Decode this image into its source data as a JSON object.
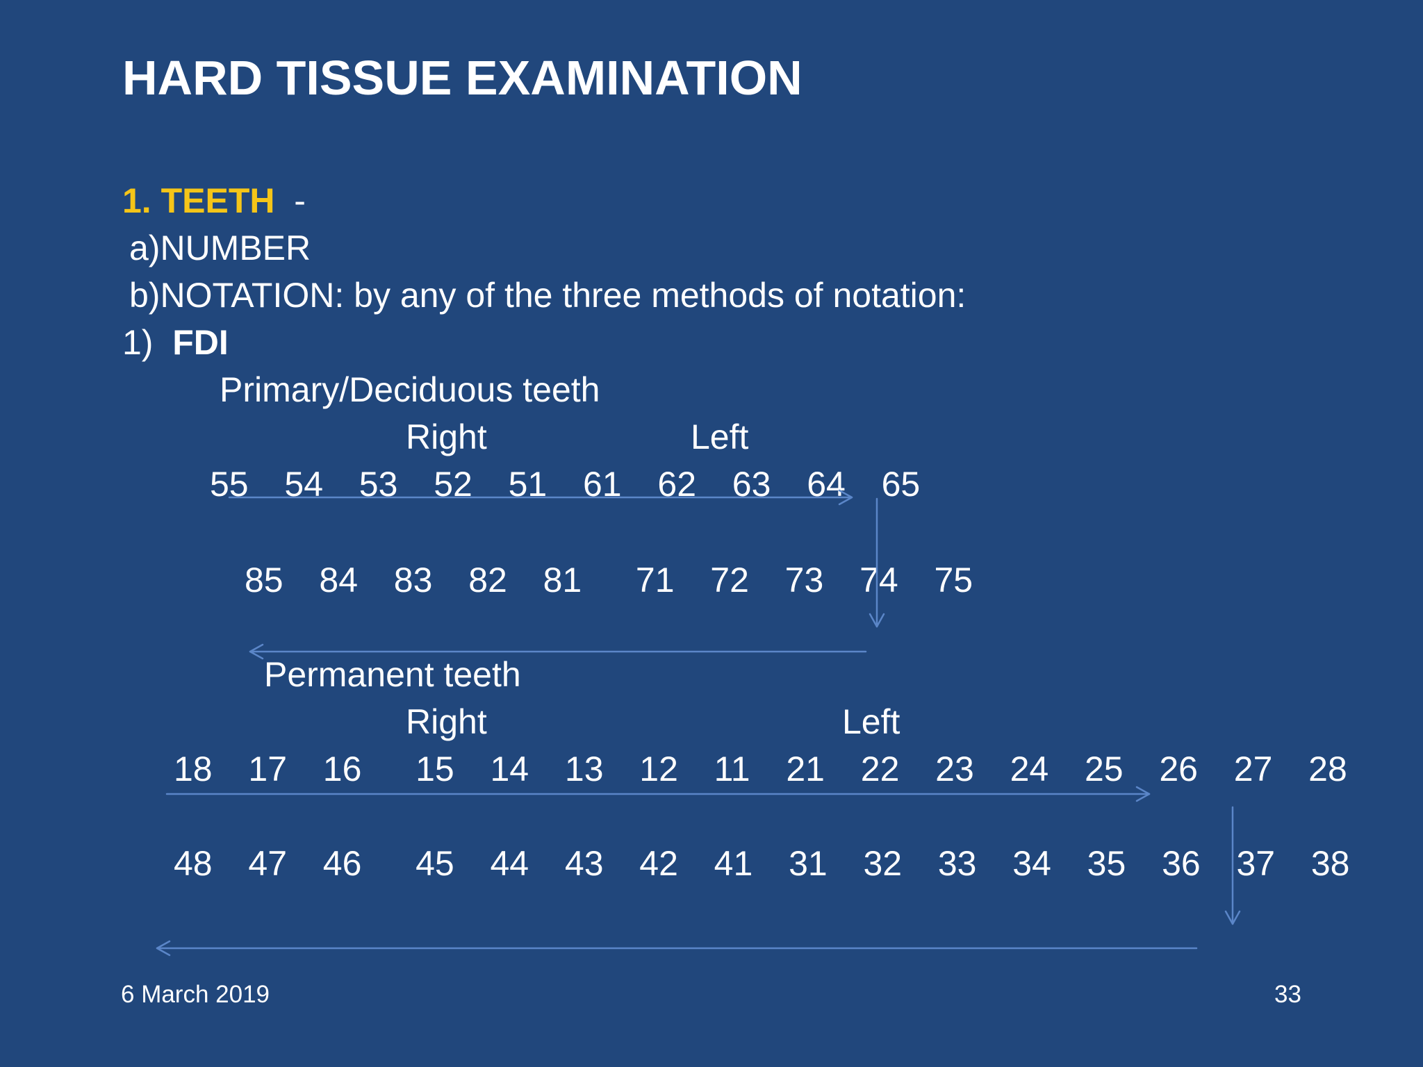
{
  "title": "HARD TISSUE EXAMINATION",
  "section": {
    "number_label": "1. TEETH",
    "dash": "-",
    "item_a": "a)NUMBER",
    "item_b": "b)NOTATION: by any of the three methods of notation:",
    "method_number": "1)",
    "method_name": "FDI"
  },
  "primary": {
    "heading": "Primary/Deciduous teeth",
    "right_label": "Right",
    "left_label": "Left",
    "upper_row": "55  54  53  52  51  61  62  63  64  65",
    "lower_row": "85  84  83  82  81   71  72  73  74  75"
  },
  "permanent": {
    "heading": "Permanent teeth",
    "right_label": "Right",
    "left_label": "Left",
    "upper_row": "18  17  16   15  14  13  12  11  21  22  23  24  25  26  27  28",
    "lower_row": "48  47  46   45  44  43  42  41  31  32  33  34  35  36  37  38"
  },
  "footer": {
    "date": "6 March 2019",
    "page_number": "33"
  },
  "colors": {
    "background": "#21477c",
    "text": "#ffffff",
    "accent": "#f5c518",
    "arrow": "#5b86c8"
  }
}
